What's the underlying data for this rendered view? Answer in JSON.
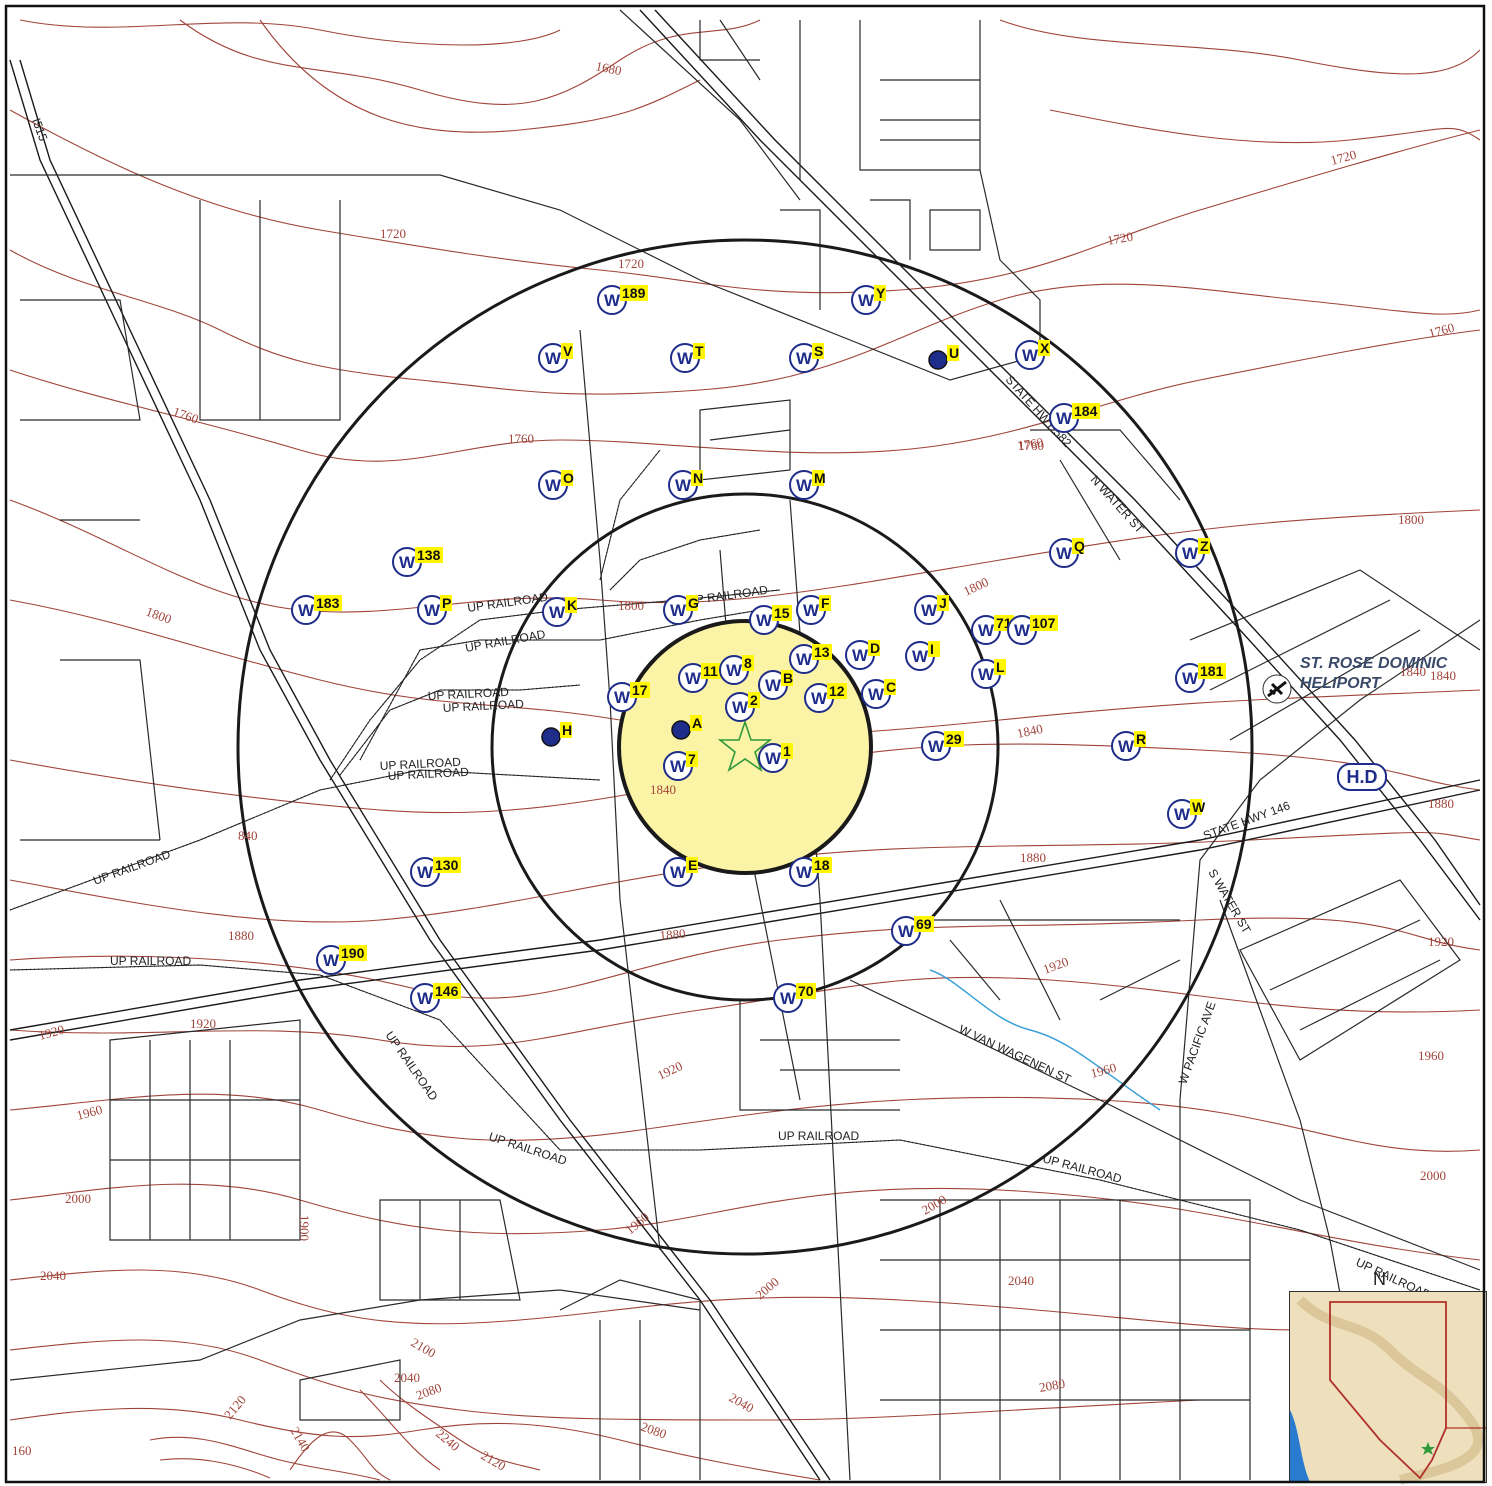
{
  "map": {
    "contour_labels": [
      "1680",
      "1720",
      "1720",
      "1720",
      "1720",
      "1760",
      "1760",
      "1760",
      "1760",
      "1760",
      "1800",
      "1800",
      "1800",
      "1800",
      "1840",
      "1840",
      "1840",
      "1840",
      "840",
      "1880",
      "1880",
      "1880",
      "1880",
      "1920",
      "1920",
      "1920",
      "1920",
      "1920",
      "1960",
      "1960",
      "1960",
      "2000",
      "2000",
      "2000",
      "2000",
      "2040",
      "2040",
      "2040",
      "2040",
      "2080",
      "2080",
      "2080",
      "2100",
      "2120",
      "2120",
      "2140",
      "2240",
      "1900",
      "1960",
      "160"
    ],
    "road_labels": [
      "I515",
      "STATE HWY 582",
      "N WATER ST",
      "STATE HWY 146",
      "S WATER ST",
      "W VAN WAGENEN ST",
      "W PACIFIC AVE",
      "UP RAILROAD",
      "UP RAILROAD",
      "UP RAILROAD",
      "UP RAILROAD",
      "UP RAILROAD",
      "UP RAILROAD",
      "UP RAILROAD",
      "UP RAILROAD",
      "UP RAILROAD",
      "UP RAILROAD",
      "UP RAILROAD",
      "UP RAILROAD",
      "UP RAILROAD",
      "UP RAILROAD"
    ],
    "heliport": {
      "name_line1": "ST. ROSE DOMINIC",
      "name_line2": "HELIPORT",
      "badge": "H.D"
    },
    "wells": [
      {
        "label": "189",
        "type": "well"
      },
      {
        "label": "Y",
        "type": "well"
      },
      {
        "label": "V",
        "type": "well"
      },
      {
        "label": "T",
        "type": "well"
      },
      {
        "label": "S",
        "type": "well"
      },
      {
        "label": "U",
        "type": "dot"
      },
      {
        "label": "X",
        "type": "well"
      },
      {
        "label": "184",
        "type": "well"
      },
      {
        "label": "O",
        "type": "well"
      },
      {
        "label": "N",
        "type": "well"
      },
      {
        "label": "M",
        "type": "well"
      },
      {
        "label": "Q",
        "type": "well"
      },
      {
        "label": "Z",
        "type": "well"
      },
      {
        "label": "138",
        "type": "well"
      },
      {
        "label": "183",
        "type": "well"
      },
      {
        "label": "P",
        "type": "well"
      },
      {
        "label": "K",
        "type": "well"
      },
      {
        "label": "G",
        "type": "well"
      },
      {
        "label": "15",
        "type": "well"
      },
      {
        "label": "F",
        "type": "well"
      },
      {
        "label": "J",
        "type": "well"
      },
      {
        "label": "71",
        "type": "well"
      },
      {
        "label": "107",
        "type": "well"
      },
      {
        "label": "11",
        "type": "well"
      },
      {
        "label": "8",
        "type": "well"
      },
      {
        "label": "13",
        "type": "well"
      },
      {
        "label": "D",
        "type": "well"
      },
      {
        "label": "I",
        "type": "well"
      },
      {
        "label": "L",
        "type": "well"
      },
      {
        "label": "181",
        "type": "well"
      },
      {
        "label": "17",
        "type": "well"
      },
      {
        "label": "B",
        "type": "well"
      },
      {
        "label": "12",
        "type": "well"
      },
      {
        "label": "C",
        "type": "well"
      },
      {
        "label": "2",
        "type": "well"
      },
      {
        "label": "A",
        "type": "dot"
      },
      {
        "label": "H",
        "type": "dot"
      },
      {
        "label": "1",
        "type": "well"
      },
      {
        "label": "7",
        "type": "well"
      },
      {
        "label": "29",
        "type": "well"
      },
      {
        "label": "R",
        "type": "well"
      },
      {
        "label": "W",
        "type": "well"
      },
      {
        "label": "130",
        "type": "well"
      },
      {
        "label": "E",
        "type": "well"
      },
      {
        "label": "18",
        "type": "well"
      },
      {
        "label": "69",
        "type": "well"
      },
      {
        "label": "190",
        "type": "well"
      },
      {
        "label": "146",
        "type": "well"
      },
      {
        "label": "70",
        "type": "well"
      }
    ],
    "north_arrow": "N",
    "colors": {
      "contour": "#a0443a",
      "well": "#1f2d8a",
      "label_highlight": "#fff600",
      "core_fill": "#fbf3a6",
      "site_star": "#2e9a3a",
      "stream": "#3aa0d8"
    },
    "icons": {
      "site": "star-icon",
      "well": "well-icon",
      "heliport": "airplane-icon"
    }
  }
}
